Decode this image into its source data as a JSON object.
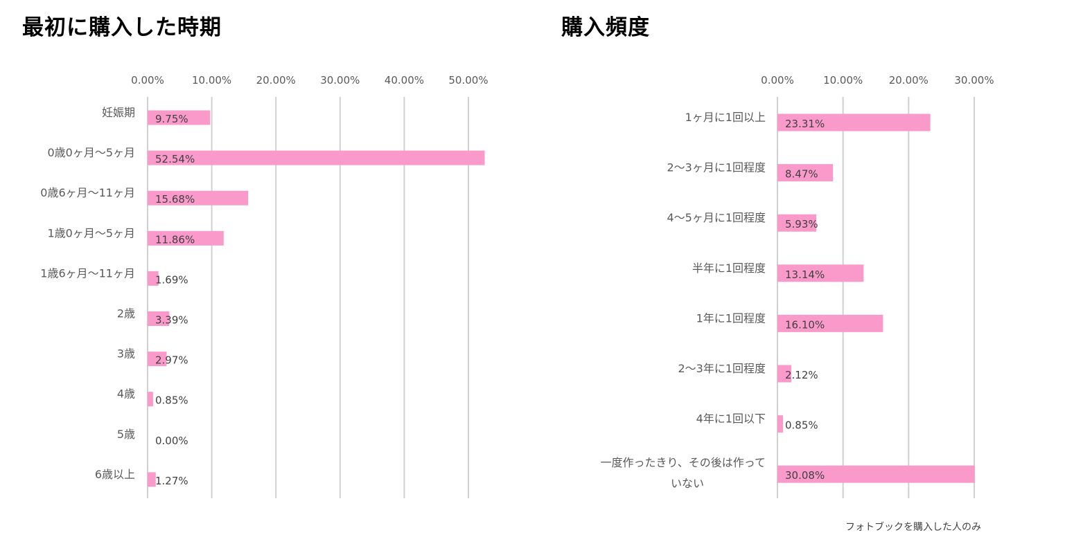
{
  "chart_data": [
    {
      "type": "bar",
      "orientation": "horizontal",
      "title": "最初に購入した時期",
      "categories": [
        "妊娠期",
        "0歳0ヶ月〜5ヶ月",
        "0歳6ヶ月〜11ヶ月",
        "1歳0ヶ月〜5ヶ月",
        "1歳6ヶ月〜11ヶ月",
        "2歳",
        "3歳",
        "4歳",
        "5歳",
        "6歳以上"
      ],
      "values": [
        9.75,
        52.54,
        15.68,
        11.86,
        1.69,
        3.39,
        2.97,
        0.85,
        0.0,
        1.27
      ],
      "value_labels": [
        "9.75%",
        "52.54%",
        "15.68%",
        "11.86%",
        "1.69%",
        "3.39%",
        "2.97%",
        "0.85%",
        "0.00%",
        "1.27%"
      ],
      "xticks": [
        "0.00%",
        "10.00%",
        "20.00%",
        "30.00%",
        "40.00%",
        "50.00%"
      ],
      "xtick_values": [
        0,
        10,
        20,
        30,
        40,
        50
      ],
      "xlim": [
        0,
        50
      ],
      "axis_position": "top",
      "grid": true,
      "bar_color": "#fa9acb"
    },
    {
      "type": "bar",
      "orientation": "horizontal",
      "title": "購入頻度",
      "categories": [
        "1ヶ月に1回以上",
        "2〜3ヶ月に1回程度",
        "4〜5ヶ月に1回程度",
        "半年に1回程度",
        "1年に1回程度",
        "2〜3年に1回程度",
        "4年に1回以下",
        [
          "一度作ったきり、その後は作って",
          "いない"
        ]
      ],
      "values": [
        23.31,
        8.47,
        5.93,
        13.14,
        16.1,
        2.12,
        0.85,
        30.08
      ],
      "value_labels": [
        "23.31%",
        "8.47%",
        "5.93%",
        "13.14%",
        "16.10%",
        "2.12%",
        "0.85%",
        "30.08%"
      ],
      "xticks": [
        "0.00%",
        "10.00%",
        "20.00%",
        "30.00%"
      ],
      "xtick_values": [
        0,
        10,
        20,
        30
      ],
      "xlim": [
        0,
        30
      ],
      "axis_position": "top",
      "grid": true,
      "bar_color": "#fa9acb"
    }
  ],
  "footnote": "フォトブックを購入した人のみ"
}
